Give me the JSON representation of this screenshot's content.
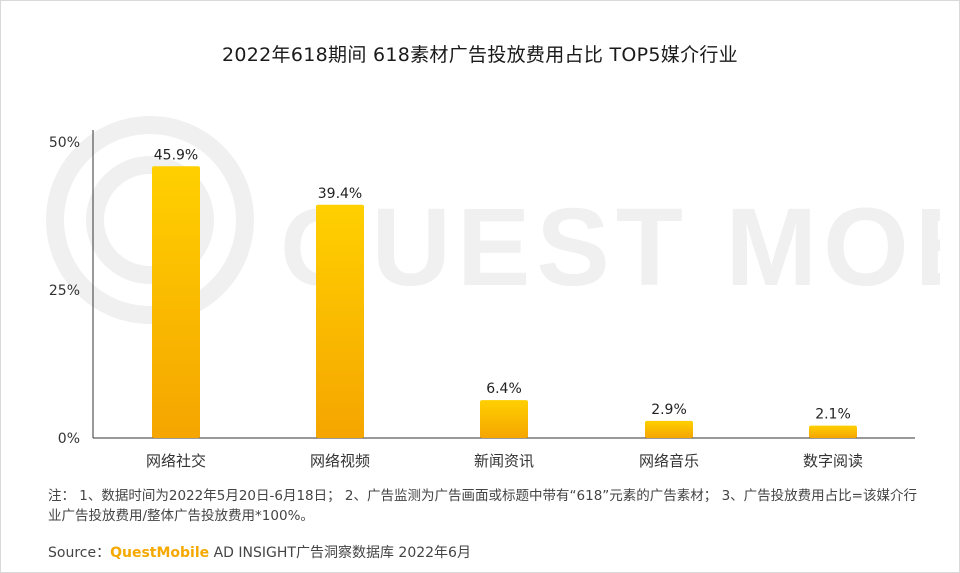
{
  "title": "2022年618期间 618素材广告投放费用占比 TOP5媒介行业",
  "watermark_text": "QUEST MOBILE",
  "note": "注： 1、数据时间为2022年5月20日-6月18日； 2、广告监测为广告画面或标题中带有“618”元素的广告素材； 3、广告投放费用占比=该媒介行业广告投放费用/整体广告投放费用*100%。",
  "source": {
    "prefix": "Source：",
    "brand": "QuestMobile",
    "rest": " AD INSIGHT广告洞察数据库 2022年6月"
  },
  "colors": {
    "bar_top": "#ffd000",
    "bar_bottom": "#f5a500",
    "axis": "#333333",
    "brand": "#f5a800"
  },
  "chart_data": {
    "type": "bar",
    "title": "2022年618期间 618素材广告投放费用占比 TOP5媒介行业",
    "categories": [
      "网络社交",
      "网络视频",
      "新闻资讯",
      "网络音乐",
      "数字阅读"
    ],
    "values": [
      45.9,
      39.4,
      6.4,
      2.9,
      2.1
    ],
    "value_labels": [
      "45.9%",
      "39.4%",
      "6.4%",
      "2.9%",
      "2.1%"
    ],
    "ylim": [
      0,
      50
    ],
    "yticks": [
      0,
      25,
      50
    ],
    "ytick_labels": [
      "0%",
      "25%",
      "50%"
    ],
    "xlabel": "",
    "ylabel": "",
    "grid": false,
    "legend": "none"
  }
}
